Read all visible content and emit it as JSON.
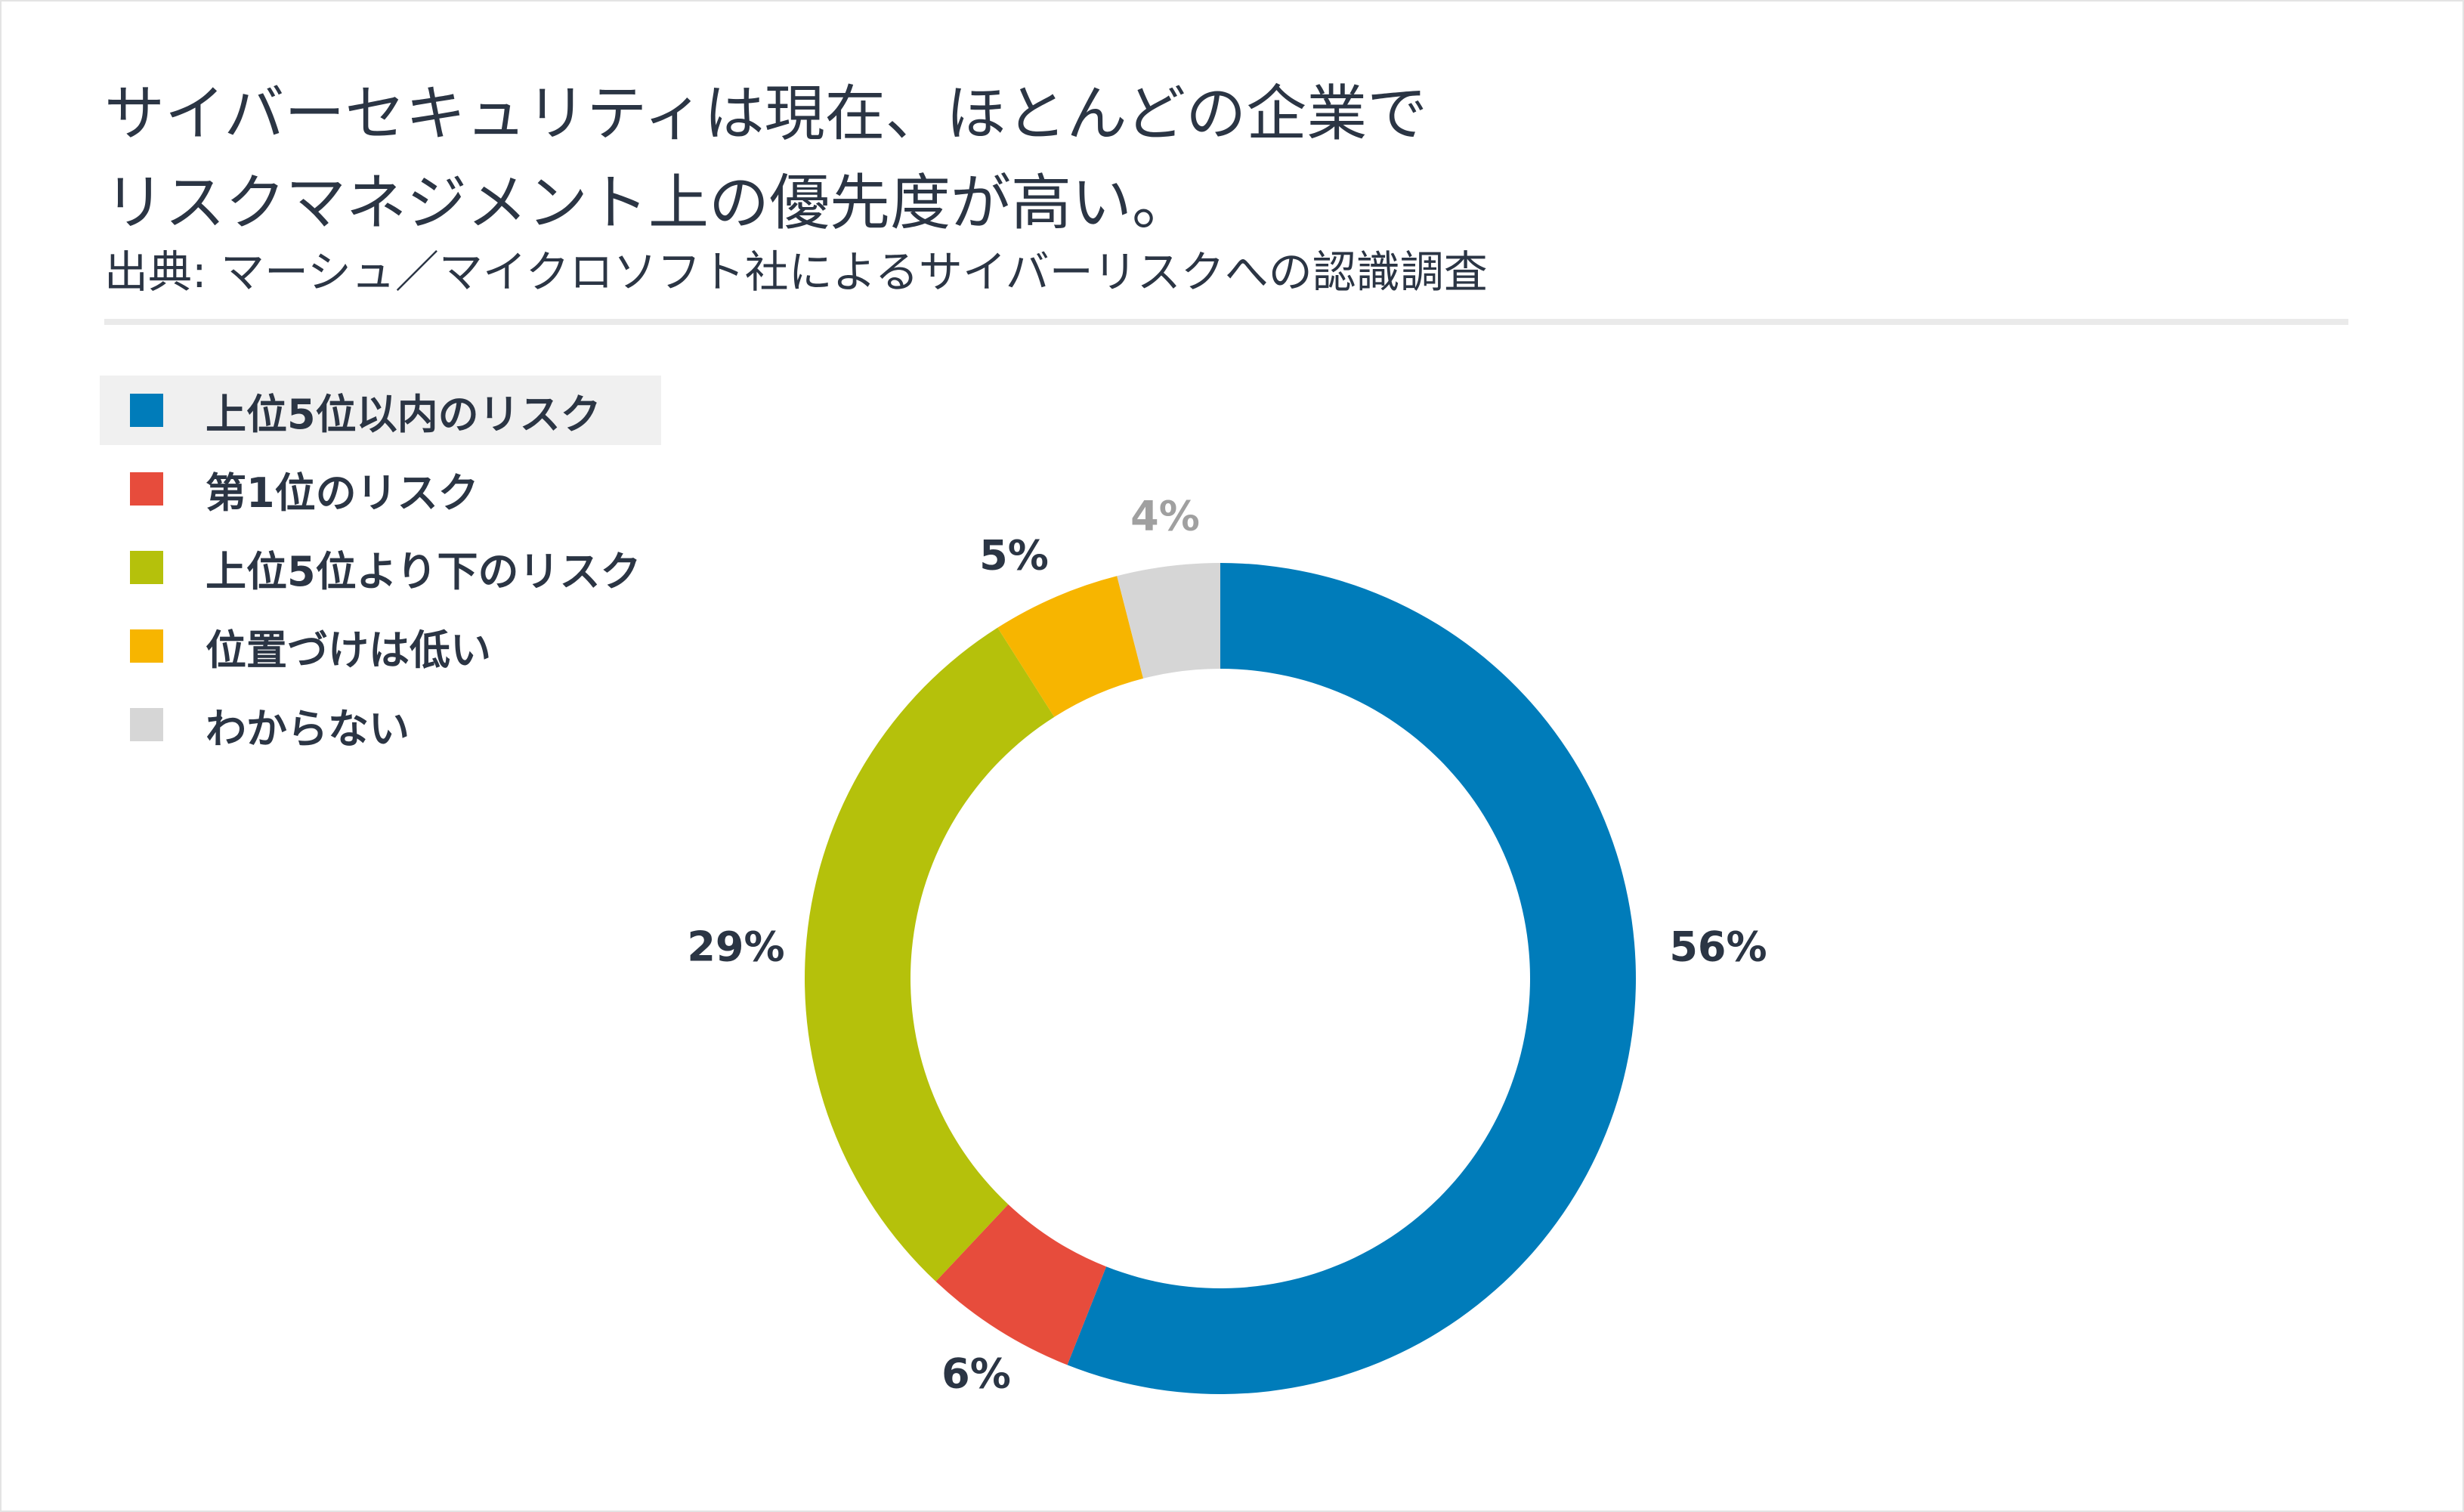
{
  "header": {
    "title_lines": [
      "サイバーセキュリティは現在、ほとんどの企業で",
      "リスクマネジメント上の優先度が高い。"
    ],
    "source": "出典: マーシュ／マイクロソフト社によるサイバーリスクへの認識調査"
  },
  "chart_data": {
    "type": "pie",
    "donut": true,
    "legend_position": "top-left",
    "slices": [
      {
        "name": "上位5位以内のリスク",
        "value": 56,
        "label": "56%",
        "color": "#007cba",
        "label_color": "#2b3544"
      },
      {
        "name": "第1位のリスク",
        "value": 6,
        "label": "6%",
        "color": "#e74c3c",
        "label_color": "#2b3544"
      },
      {
        "name": "上位5位より下のリスク",
        "value": 29,
        "label": "29%",
        "color": "#b5c10b",
        "label_color": "#2b3544"
      },
      {
        "name": "位置づけは低い",
        "value": 5,
        "label": "5%",
        "color": "#f7b500",
        "label_color": "#2b3544"
      },
      {
        "name": "わからない",
        "value": 4,
        "label": "4%",
        "color": "#d6d6d6",
        "label_color": "#a0a0a0"
      }
    ]
  }
}
